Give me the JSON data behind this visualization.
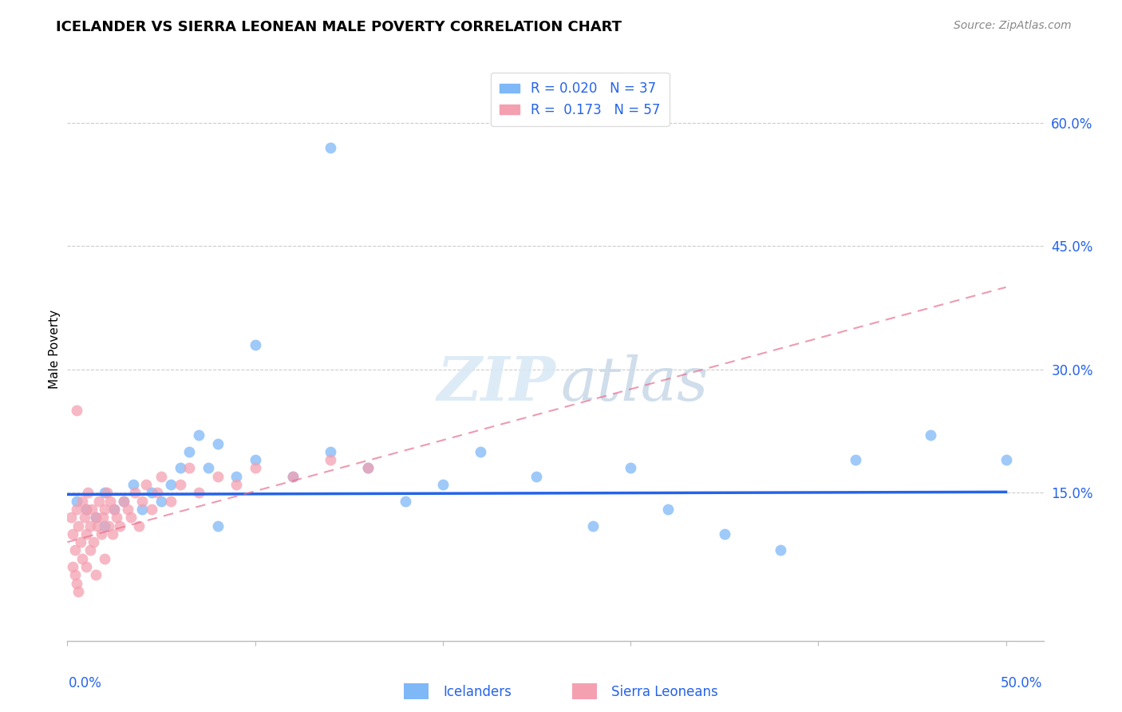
{
  "title": "ICELANDER VS SIERRA LEONEAN MALE POVERTY CORRELATION CHART",
  "source": "Source: ZipAtlas.com",
  "ylabel": "Male Poverty",
  "ytick_labels": [
    "60.0%",
    "45.0%",
    "30.0%",
    "15.0%"
  ],
  "ytick_values": [
    0.6,
    0.45,
    0.3,
    0.15
  ],
  "xlim": [
    0.0,
    0.52
  ],
  "ylim": [
    -0.03,
    0.68
  ],
  "legend_blue_r": "R = 0.020",
  "legend_blue_n": "N = 37",
  "legend_pink_r": "R =  0.173",
  "legend_pink_n": "N = 57",
  "blue_color": "#7EB8F7",
  "pink_color": "#F4A0B0",
  "blue_line_color": "#2563EB",
  "pink_line_color": "#E87090",
  "grid_color": "#CCCCCC",
  "icelanders_x": [
    0.005,
    0.01,
    0.015,
    0.02,
    0.02,
    0.025,
    0.03,
    0.035,
    0.04,
    0.045,
    0.05,
    0.055,
    0.06,
    0.065,
    0.07,
    0.075,
    0.08,
    0.09,
    0.1,
    0.12,
    0.14,
    0.16,
    0.18,
    0.2,
    0.22,
    0.25,
    0.28,
    0.3,
    0.32,
    0.35,
    0.38,
    0.42,
    0.46,
    0.5,
    0.14,
    0.1,
    0.08
  ],
  "icelanders_y": [
    0.14,
    0.13,
    0.12,
    0.15,
    0.11,
    0.13,
    0.14,
    0.16,
    0.13,
    0.15,
    0.14,
    0.16,
    0.18,
    0.2,
    0.22,
    0.18,
    0.21,
    0.17,
    0.19,
    0.17,
    0.2,
    0.18,
    0.14,
    0.16,
    0.2,
    0.17,
    0.11,
    0.18,
    0.13,
    0.1,
    0.08,
    0.19,
    0.22,
    0.19,
    0.57,
    0.33,
    0.11
  ],
  "sierra_leone_x": [
    0.002,
    0.003,
    0.004,
    0.005,
    0.005,
    0.006,
    0.007,
    0.008,
    0.009,
    0.01,
    0.01,
    0.011,
    0.012,
    0.013,
    0.014,
    0.015,
    0.016,
    0.017,
    0.018,
    0.019,
    0.02,
    0.021,
    0.022,
    0.023,
    0.024,
    0.025,
    0.026,
    0.028,
    0.03,
    0.032,
    0.034,
    0.036,
    0.038,
    0.04,
    0.042,
    0.045,
    0.048,
    0.05,
    0.055,
    0.06,
    0.065,
    0.07,
    0.08,
    0.09,
    0.1,
    0.12,
    0.14,
    0.16,
    0.003,
    0.004,
    0.005,
    0.006,
    0.008,
    0.01,
    0.012,
    0.015,
    0.02
  ],
  "sierra_leone_y": [
    0.12,
    0.1,
    0.08,
    0.25,
    0.13,
    0.11,
    0.09,
    0.14,
    0.12,
    0.1,
    0.13,
    0.15,
    0.11,
    0.13,
    0.09,
    0.12,
    0.11,
    0.14,
    0.1,
    0.12,
    0.13,
    0.15,
    0.11,
    0.14,
    0.1,
    0.13,
    0.12,
    0.11,
    0.14,
    0.13,
    0.12,
    0.15,
    0.11,
    0.14,
    0.16,
    0.13,
    0.15,
    0.17,
    0.14,
    0.16,
    0.18,
    0.15,
    0.17,
    0.16,
    0.18,
    0.17,
    0.19,
    0.18,
    0.06,
    0.05,
    0.04,
    0.03,
    0.07,
    0.06,
    0.08,
    0.05,
    0.07
  ],
  "blue_trend_start_y": 0.148,
  "blue_trend_end_y": 0.151,
  "pink_trend_start_y": 0.09,
  "pink_trend_end_y": 0.4
}
